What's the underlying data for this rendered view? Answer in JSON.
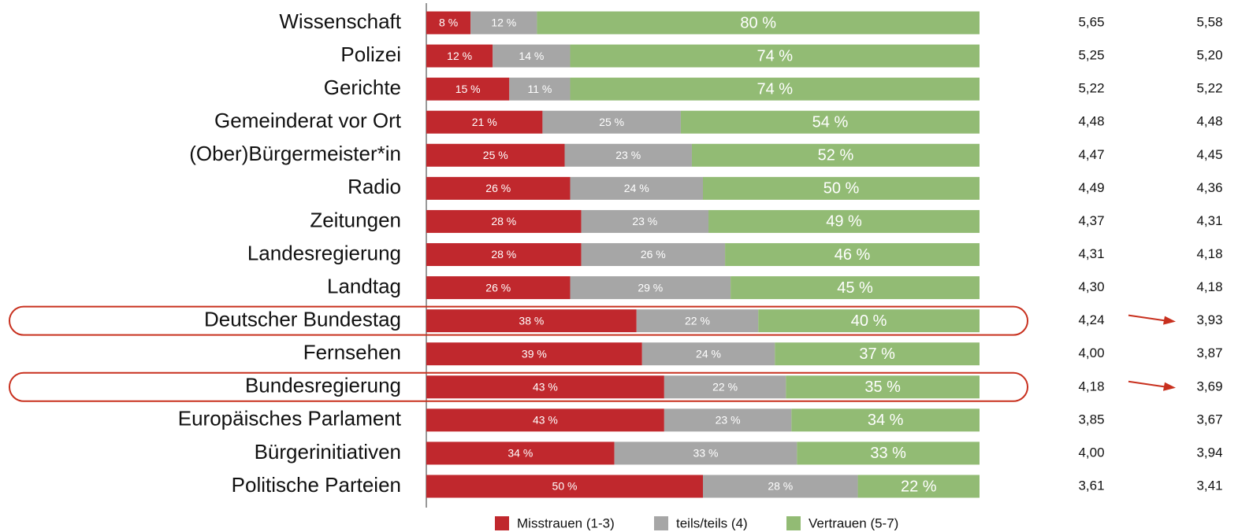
{
  "chart_data": {
    "type": "bar",
    "orientation": "horizontal",
    "stacked": true,
    "categories": [
      "Wissenschaft",
      "Polizei",
      "Gerichte",
      "Gemeinderat vor Ort",
      "(Ober)Bürgermeister*in",
      "Radio",
      "Zeitungen",
      "Landesregierung",
      "Landtag",
      "Deutscher Bundestag",
      "Fernsehen",
      "Bundesregierung",
      "Europäisches Parlament",
      "Bürgerinitiativen",
      "Politische Parteien"
    ],
    "xlim": [
      0,
      100
    ],
    "series": [
      {
        "name": "Misstrauen (1-3)",
        "color": "#c0282d",
        "values": [
          8,
          12,
          15,
          21,
          25,
          26,
          28,
          28,
          26,
          38,
          39,
          43,
          43,
          34,
          50
        ],
        "value_labels": [
          "8 %",
          "12 %",
          "15 %",
          "21 %",
          "25 %",
          "26 %",
          "28 %",
          "28 %",
          "26 %",
          "38 %",
          "39 %",
          "43 %",
          "43 %",
          "34 %",
          "50 %"
        ]
      },
      {
        "name": "teils/teils (4)",
        "color": "#a6a6a6",
        "values": [
          12,
          14,
          11,
          25,
          23,
          24,
          23,
          26,
          29,
          22,
          24,
          22,
          23,
          33,
          28
        ],
        "value_labels": [
          "12 %",
          "14 %",
          "11 %",
          "25 %",
          "23 %",
          "24 %",
          "23 %",
          "26 %",
          "29 %",
          "22 %",
          "24 %",
          "22 %",
          "23 %",
          "33 %",
          "28 %"
        ]
      },
      {
        "name": "Vertrauen (5-7)",
        "color": "#92bb74",
        "values": [
          80,
          74,
          74,
          54,
          52,
          50,
          49,
          46,
          45,
          40,
          37,
          35,
          34,
          33,
          22
        ],
        "value_labels": [
          "80 %",
          "74 %",
          "74 %",
          "54 %",
          "52 %",
          "50 %",
          "49 %",
          "46 %",
          "45 %",
          "40 %",
          "37 %",
          "35 %",
          "34 %",
          "33 %",
          "22 %"
        ]
      }
    ],
    "columns": [
      {
        "values": [
          5.65,
          5.25,
          5.22,
          4.48,
          4.47,
          4.49,
          4.37,
          4.31,
          4.3,
          4.24,
          4.0,
          4.18,
          3.85,
          4.0,
          3.61
        ],
        "value_labels": [
          "5,65",
          "5,25",
          "5,22",
          "4,48",
          "4,47",
          "4,49",
          "4,37",
          "4,31",
          "4,30",
          "4,24",
          "4,00",
          "4,18",
          "3,85",
          "4,00",
          "3,61"
        ]
      },
      {
        "values": [
          5.58,
          5.2,
          5.22,
          4.48,
          4.45,
          4.36,
          4.31,
          4.18,
          4.18,
          3.93,
          3.87,
          3.69,
          3.67,
          3.94,
          3.41
        ],
        "value_labels": [
          "5,58",
          "5,20",
          "5,22",
          "4,48",
          "4,45",
          "4,36",
          "4,31",
          "4,18",
          "4,18",
          "3,93",
          "3,87",
          "3,69",
          "3,67",
          "3,94",
          "3,41"
        ]
      }
    ],
    "highlight": [
      9,
      11
    ],
    "legend": "bottom"
  }
}
